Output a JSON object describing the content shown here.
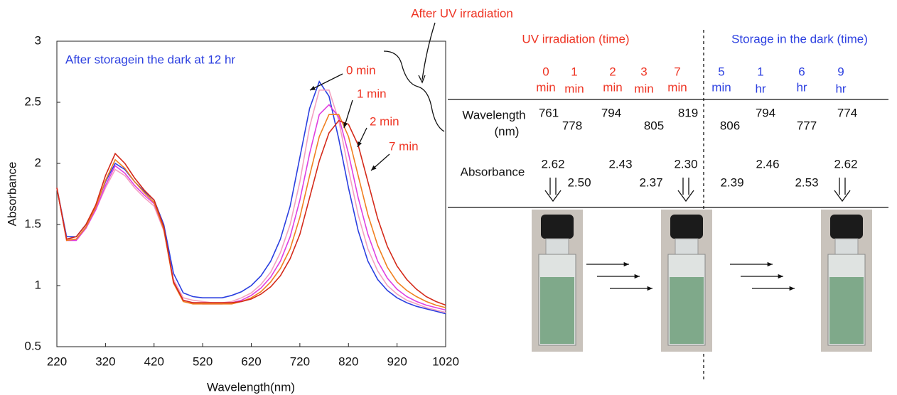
{
  "chart_data": {
    "type": "line",
    "xlabel": "Wavelength(nm)",
    "ylabel": "Absorbance",
    "annotation": "After UV irradiation",
    "x": [
      220,
      240,
      260,
      280,
      300,
      320,
      340,
      360,
      380,
      400,
      420,
      440,
      460,
      480,
      500,
      520,
      540,
      560,
      580,
      600,
      620,
      640,
      660,
      680,
      700,
      720,
      740,
      760,
      780,
      800,
      820,
      840,
      860,
      880,
      900,
      920,
      940,
      960,
      980,
      1000,
      1020
    ],
    "series": [
      {
        "name": "After storagein the dark at 12 hr",
        "color": "#2b3fe0",
        "values": [
          1.8,
          1.4,
          1.4,
          1.5,
          1.65,
          1.85,
          2.0,
          1.95,
          1.85,
          1.77,
          1.7,
          1.5,
          1.1,
          0.94,
          0.91,
          0.9,
          0.9,
          0.9,
          0.92,
          0.95,
          1.0,
          1.08,
          1.2,
          1.38,
          1.65,
          2.05,
          2.45,
          2.67,
          2.55,
          2.2,
          1.8,
          1.45,
          1.2,
          1.05,
          0.96,
          0.9,
          0.86,
          0.83,
          0.81,
          0.79,
          0.77
        ]
      },
      {
        "name": "0 min",
        "color": "#f4a0c0",
        "values": [
          1.8,
          1.38,
          1.38,
          1.48,
          1.62,
          1.8,
          1.95,
          1.9,
          1.8,
          1.72,
          1.65,
          1.45,
          1.05,
          0.9,
          0.88,
          0.87,
          0.86,
          0.86,
          0.87,
          0.9,
          0.94,
          1.01,
          1.11,
          1.27,
          1.5,
          1.85,
          2.3,
          2.6,
          2.6,
          2.35,
          1.95,
          1.58,
          1.3,
          1.12,
          1.0,
          0.93,
          0.88,
          0.85,
          0.82,
          0.8,
          0.78
        ]
      },
      {
        "name": "1 min",
        "color": "#e040e0",
        "values": [
          1.8,
          1.37,
          1.37,
          1.47,
          1.62,
          1.82,
          1.98,
          1.92,
          1.82,
          1.74,
          1.67,
          1.46,
          1.03,
          0.88,
          0.86,
          0.85,
          0.85,
          0.85,
          0.86,
          0.88,
          0.92,
          0.98,
          1.07,
          1.2,
          1.4,
          1.7,
          2.08,
          2.4,
          2.48,
          2.38,
          2.08,
          1.72,
          1.42,
          1.2,
          1.06,
          0.97,
          0.91,
          0.87,
          0.84,
          0.82,
          0.8
        ]
      },
      {
        "name": "2 min",
        "color": "#f08020",
        "values": [
          1.8,
          1.37,
          1.38,
          1.48,
          1.64,
          1.86,
          2.03,
          1.96,
          1.85,
          1.76,
          1.68,
          1.46,
          1.02,
          0.87,
          0.85,
          0.85,
          0.85,
          0.85,
          0.85,
          0.87,
          0.9,
          0.95,
          1.03,
          1.14,
          1.3,
          1.56,
          1.9,
          2.22,
          2.4,
          2.4,
          2.22,
          1.9,
          1.58,
          1.33,
          1.15,
          1.03,
          0.96,
          0.91,
          0.87,
          0.84,
          0.82
        ]
      },
      {
        "name": "7 min",
        "color": "#d42a1a",
        "values": [
          1.8,
          1.38,
          1.4,
          1.5,
          1.66,
          1.9,
          2.08,
          2.0,
          1.88,
          1.78,
          1.7,
          1.48,
          1.03,
          0.88,
          0.86,
          0.86,
          0.86,
          0.86,
          0.86,
          0.87,
          0.89,
          0.93,
          0.99,
          1.08,
          1.22,
          1.42,
          1.72,
          2.02,
          2.25,
          2.35,
          2.32,
          2.15,
          1.85,
          1.55,
          1.32,
          1.16,
          1.05,
          0.97,
          0.91,
          0.87,
          0.84
        ]
      }
    ],
    "xlim": [
      220,
      1020
    ],
    "xticks": [
      220,
      320,
      420,
      520,
      620,
      720,
      820,
      920,
      1020
    ],
    "ylim": [
      0.5,
      3
    ],
    "yticks": [
      0.5,
      1,
      1.5,
      2,
      2.5,
      3
    ]
  },
  "table": {
    "row_headers": {
      "wavelength": [
        "Wavelength",
        "(nm)"
      ],
      "absorbance": "Absorbance"
    },
    "groups": [
      {
        "title": "UV irradiation (time)",
        "color": "#ee3322",
        "times": [
          [
            "0",
            "min"
          ],
          [
            "1",
            "min"
          ],
          [
            "2",
            "min"
          ],
          [
            "3",
            "min"
          ],
          [
            "7",
            "min"
          ]
        ],
        "wavelength": [
          "761",
          "778",
          "794",
          "805",
          "819"
        ],
        "absorbance": [
          "2.62",
          "2.50",
          "2.43",
          "2.37",
          "2.30"
        ]
      },
      {
        "title": "Storage in the dark (time)",
        "color": "#2b3fe0",
        "times": [
          [
            "5",
            "min"
          ],
          [
            "1",
            "hr"
          ],
          [
            "6",
            "hr"
          ],
          [
            "9",
            "hr"
          ]
        ],
        "wavelength": [
          "806",
          "794",
          "777",
          "774"
        ],
        "absorbance": [
          "2.39",
          "2.46",
          "2.53",
          "2.62"
        ]
      }
    ]
  }
}
